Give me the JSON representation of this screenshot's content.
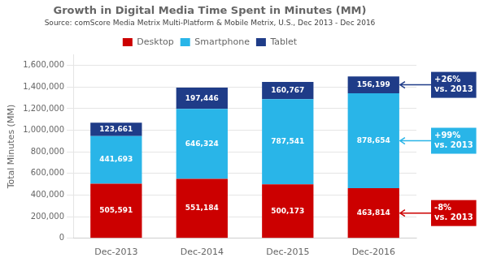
{
  "chart_data": {
    "type": "bar",
    "stacked": true,
    "title": "Growth in Digital Media Time Spent in Minutes (MM)",
    "subtitle": "Source: comScore Media Metrix Multi-Platform & Mobile Metrix, U.S., Dec 2013 - Dec 2016",
    "categories": [
      "Dec-2013",
      "Dec-2014",
      "Dec-2015",
      "Dec-2016"
    ],
    "series": [
      {
        "name": "Desktop",
        "color": "#cc0000",
        "values": [
          505591,
          551184,
          500173,
          463814
        ],
        "value_labels": [
          "505,591",
          "551,184",
          "500,173",
          "463,814"
        ]
      },
      {
        "name": "Smartphone",
        "color": "#29b5e8",
        "values": [
          441693,
          646324,
          787541,
          878654
        ],
        "value_labels": [
          "441,693",
          "646,324",
          "787,541",
          "878,654"
        ]
      },
      {
        "name": "Tablet",
        "color": "#1f3c88",
        "values": [
          123661,
          197446,
          160767,
          156199
        ],
        "value_labels": [
          "123,661",
          "197,446",
          "160,767",
          "156,199"
        ]
      }
    ],
    "ylabel": "Total Minutes (MM)",
    "ylim": [
      0,
      1700000
    ],
    "yticks": [
      0,
      {
        "value": 200000,
        "label": "200,000"
      },
      {
        "value": 400000,
        "label": "400,000"
      },
      {
        "value": 600000,
        "label": "600,000"
      },
      {
        "value": 800000,
        "label": "800,000"
      },
      {
        "value": 1000000,
        "label": "1,000,000"
      },
      {
        "value": 1200000,
        "label": "1,200,000"
      },
      {
        "value": 1400000,
        "label": "1,400,000"
      },
      {
        "value": 1600000,
        "label": "1,600,000"
      }
    ],
    "grid": "y",
    "legend": "top",
    "data_labels": true,
    "annotations": [
      {
        "text": "+26%\nvs. 2013",
        "color": "#1f3c88",
        "category": "Dec-2016",
        "series": "Tablet"
      },
      {
        "text": "+99%\nvs. 2013",
        "color": "#29b5e8",
        "category": "Dec-2016",
        "series": "Smartphone"
      },
      {
        "text": "-8%\nvs. 2013",
        "color": "#cc0000",
        "category": "Dec-2016",
        "series": "Desktop"
      }
    ]
  }
}
